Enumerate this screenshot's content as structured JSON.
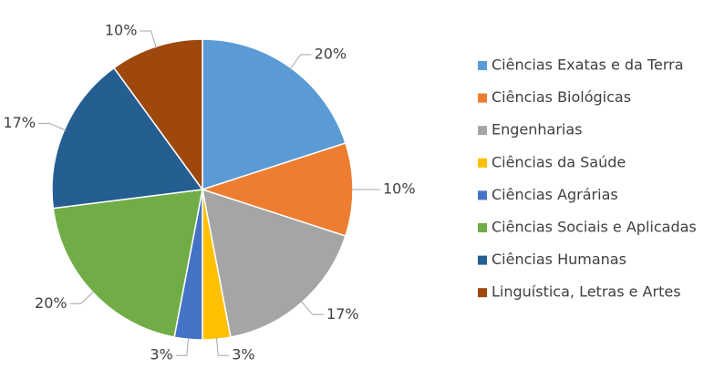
{
  "chart_data": {
    "type": "pie",
    "categories": [
      "Ciências Exatas e da Terra",
      "Ciências Biológicas",
      "Engenharias",
      "Ciências da Saúde",
      "Ciências Agrárias",
      "Ciências Sociais e Aplicadas",
      "Ciências Humanas",
      "Linguística, Letras e Artes"
    ],
    "values": [
      20,
      10,
      17,
      3,
      3,
      20,
      17,
      10
    ],
    "value_labels": [
      "20%",
      "10%",
      "17%",
      "3%",
      "3%",
      "20%",
      "17%",
      "10%"
    ],
    "colors": [
      "#5b9bd5",
      "#ed7d31",
      "#a5a5a5",
      "#ffc000",
      "#4472c4",
      "#70ad47",
      "#255e91",
      "#9e480e"
    ],
    "legend": "right"
  }
}
